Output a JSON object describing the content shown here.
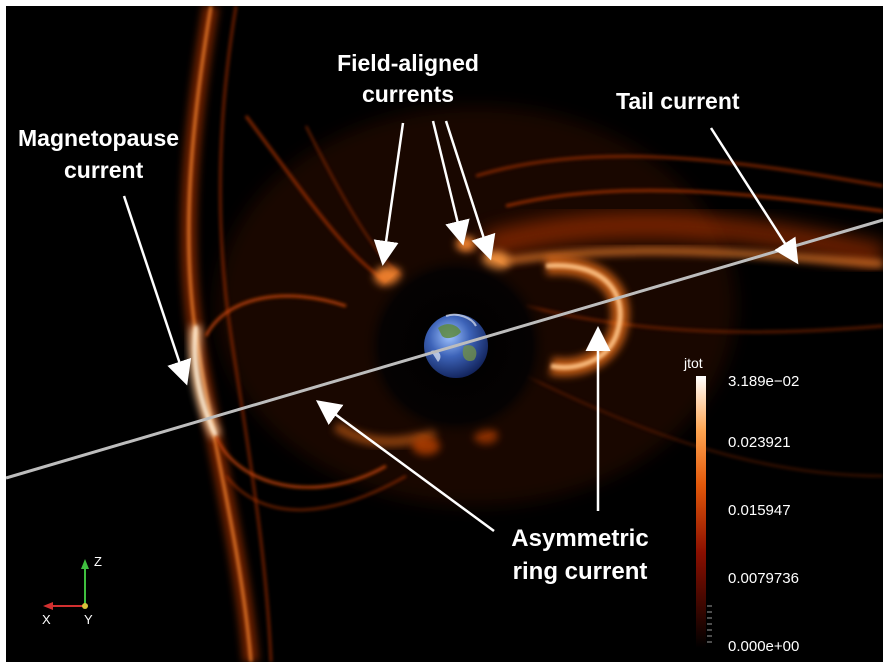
{
  "labels": {
    "field_aligned_line1": "Field-aligned",
    "field_aligned_line2": "currents",
    "tail": "Tail current",
    "magnetopause_line1": "Magnetopause",
    "magnetopause_line2": "current",
    "asym_line1": "Asymmetric",
    "asym_line2": "ring current"
  },
  "colorbar": {
    "title": "jtot",
    "ticks": [
      "3.189e−02",
      "0.023921",
      "0.015947",
      "0.0079736",
      "0.000e+00"
    ]
  },
  "axes_triad": {
    "x": "X",
    "y": "Y",
    "z": "Z"
  },
  "colors": {
    "background": "#000000",
    "current_glow": "#ff7a1a",
    "current_core": "#ffd6a0",
    "sun_line": "#bdbdbd",
    "label_text": "#ffffff"
  },
  "icons": [
    "earth-globe-icon",
    "axes-triad-icon"
  ]
}
